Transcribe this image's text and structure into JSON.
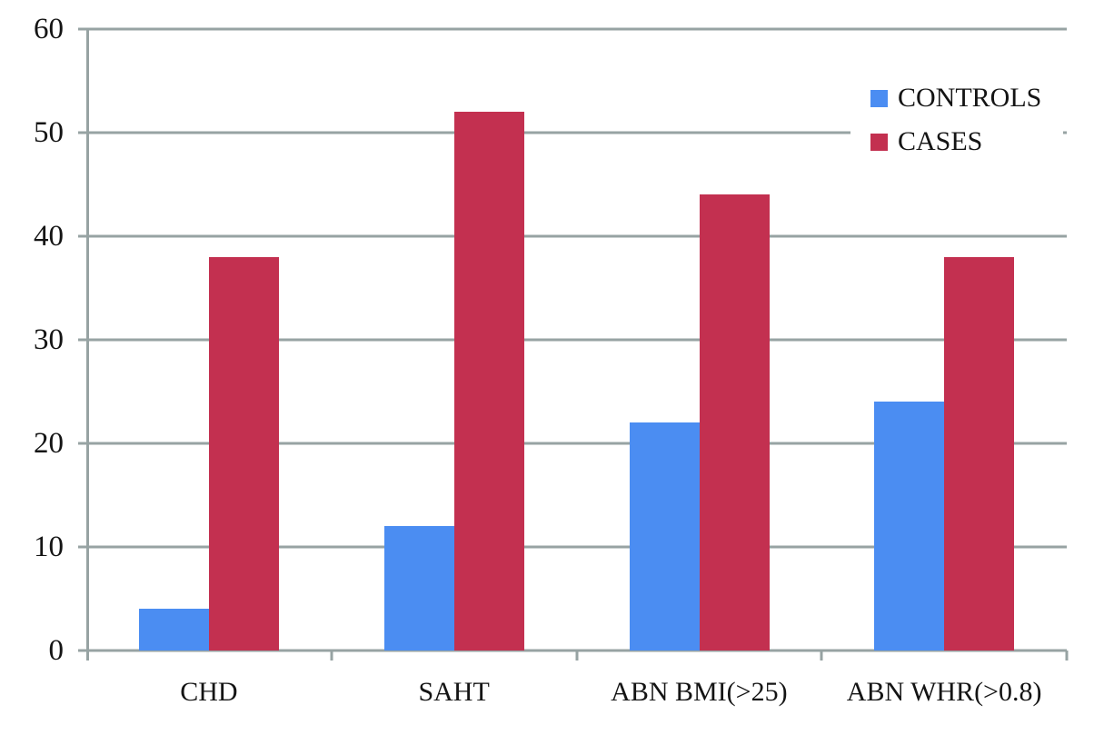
{
  "chart_data": {
    "type": "bar",
    "title": "",
    "xlabel": "",
    "ylabel": "",
    "categories": [
      "CHD",
      "SAHT",
      "ABN BMI(>25)",
      "ABN WHR(>0.8)"
    ],
    "series": [
      {
        "name": "CONTROLS",
        "color": "#4b8df2",
        "values": [
          4,
          12,
          22,
          24
        ]
      },
      {
        "name": "CASES",
        "color": "#c33050",
        "values": [
          38,
          52,
          44,
          38
        ]
      }
    ],
    "ylim": [
      0,
      60
    ],
    "yticks": [
      0,
      10,
      20,
      30,
      40,
      50,
      60
    ],
    "grid": true,
    "legend_position": "top-right"
  },
  "style": {
    "axis_color": "#97a3a3",
    "text_color": "#141414",
    "background": "#ffffff"
  }
}
